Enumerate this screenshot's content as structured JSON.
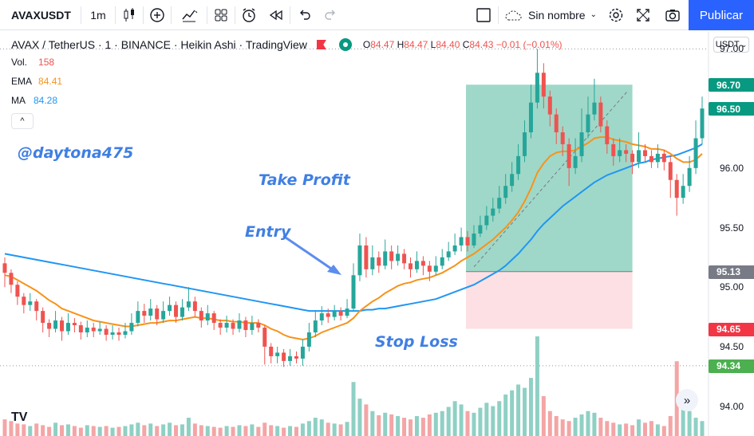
{
  "toolbar": {
    "symbol": "AVAXUSDT",
    "interval": "1m",
    "layout_name": "Sin nombre",
    "publish": "Publicar"
  },
  "legend": {
    "title": "AVAX / TetherUS · 1 · BINANCE · Heikin Ashi · TradingView",
    "ohlc": {
      "o": "84.47",
      "h": "84.47",
      "l": "84.40",
      "c": "84.43",
      "change": "−0.01 (−0.01%)"
    },
    "vol": {
      "label": "Vol.",
      "value": "158"
    },
    "ema": {
      "label": "EMA",
      "value": "84.41"
    },
    "ma": {
      "label": "MA",
      "value": "84.28"
    }
  },
  "currency": "USDT",
  "annotations": {
    "watermark": "@daytona475",
    "take_profit": "Take Profit",
    "entry": "Entry",
    "stop_loss": "Stop Loss"
  },
  "price_tags": [
    {
      "value": "96.70",
      "color": "#089981"
    },
    {
      "value": "96.50",
      "color": "#089981"
    },
    {
      "value": "95.13",
      "color": "#787b86"
    },
    {
      "value": "94.65",
      "color": "#f23645"
    },
    {
      "value": "94.34",
      "color": "#4caf50"
    }
  ],
  "colors": {
    "up": "#26a69a",
    "down": "#ef5350",
    "ema": "#f7931a",
    "ma": "#2196f3",
    "tp_zone": "#7fcbb5",
    "sl_zone": "#fcdde0"
  },
  "chart_data": {
    "type": "candlestick",
    "ylim": [
      93.75,
      97.15
    ],
    "y_ticks": [
      94.0,
      94.5,
      95.0,
      95.5,
      96.0,
      96.5,
      97.0
    ],
    "y_tick_labels": [
      "94.00",
      "94.50",
      "95.00",
      "95.50",
      "96.00",
      "96.50",
      "97.00"
    ],
    "position": {
      "entry": 95.13,
      "take_profit": 96.7,
      "stop_loss": 94.65,
      "start_index": 73,
      "end_index": 99
    },
    "candles": [
      [
        95.2,
        95.12,
        95.25,
        95.0
      ],
      [
        95.12,
        95.02,
        95.15,
        94.95
      ],
      [
        95.02,
        94.92,
        95.05,
        94.85
      ],
      [
        94.92,
        94.85,
        94.95,
        94.78
      ],
      [
        94.85,
        94.88,
        94.95,
        94.8
      ],
      [
        94.88,
        94.8,
        94.9,
        94.72
      ],
      [
        94.8,
        94.7,
        94.83,
        94.62
      ],
      [
        94.7,
        94.65,
        94.73,
        94.58
      ],
      [
        94.65,
        94.72,
        94.8,
        94.62
      ],
      [
        94.72,
        94.63,
        94.75,
        94.55
      ],
      [
        94.63,
        94.7,
        94.78,
        94.6
      ],
      [
        94.7,
        94.68,
        94.74,
        94.62
      ],
      [
        94.68,
        94.62,
        94.71,
        94.56
      ],
      [
        94.62,
        94.66,
        94.72,
        94.58
      ],
      [
        94.66,
        94.63,
        94.7,
        94.58
      ],
      [
        94.63,
        94.65,
        94.71,
        94.6
      ],
      [
        94.65,
        94.6,
        94.68,
        94.55
      ],
      [
        94.6,
        94.62,
        94.68,
        94.56
      ],
      [
        94.62,
        94.6,
        94.66,
        94.55
      ],
      [
        94.6,
        94.63,
        94.7,
        94.57
      ],
      [
        94.63,
        94.7,
        94.78,
        94.6
      ],
      [
        94.7,
        94.8,
        94.88,
        94.67
      ],
      [
        94.8,
        94.76,
        94.86,
        94.7
      ],
      [
        94.76,
        94.82,
        94.9,
        94.72
      ],
      [
        94.82,
        94.73,
        94.85,
        94.68
      ],
      [
        94.73,
        94.8,
        94.88,
        94.7
      ],
      [
        94.8,
        94.85,
        94.92,
        94.76
      ],
      [
        94.85,
        94.75,
        94.88,
        94.7
      ],
      [
        94.75,
        94.83,
        94.9,
        94.72
      ],
      [
        94.83,
        94.88,
        95.0,
        94.8
      ],
      [
        94.88,
        94.8,
        94.92,
        94.75
      ],
      [
        94.8,
        94.72,
        94.83,
        94.66
      ],
      [
        94.72,
        94.78,
        94.85,
        94.68
      ],
      [
        94.78,
        94.7,
        94.8,
        94.64
      ],
      [
        94.7,
        94.66,
        94.73,
        94.6
      ],
      [
        94.66,
        94.7,
        94.76,
        94.62
      ],
      [
        94.7,
        94.65,
        94.73,
        94.6
      ],
      [
        94.65,
        94.72,
        94.78,
        94.62
      ],
      [
        94.72,
        94.64,
        94.75,
        94.58
      ],
      [
        94.64,
        94.7,
        94.76,
        94.6
      ],
      [
        94.7,
        94.66,
        94.73,
        94.62
      ],
      [
        94.66,
        94.5,
        94.68,
        94.35
      ],
      [
        94.5,
        94.42,
        94.53,
        94.36
      ],
      [
        94.42,
        94.45,
        94.5,
        94.36
      ],
      [
        94.45,
        94.38,
        94.48,
        94.33
      ],
      [
        94.38,
        94.42,
        94.48,
        94.34
      ],
      [
        94.42,
        94.4,
        94.46,
        94.36
      ],
      [
        94.4,
        94.5,
        94.56,
        94.34
      ],
      [
        94.5,
        94.62,
        94.7,
        94.46
      ],
      [
        94.62,
        94.72,
        94.8,
        94.58
      ],
      [
        94.72,
        94.78,
        94.84,
        94.68
      ],
      [
        94.78,
        94.75,
        94.82,
        94.7
      ],
      [
        94.75,
        94.8,
        94.85,
        94.72
      ],
      [
        94.8,
        94.76,
        94.83,
        94.72
      ],
      [
        94.76,
        94.82,
        94.9,
        94.74
      ],
      [
        94.82,
        95.1,
        95.2,
        94.8
      ],
      [
        95.1,
        95.35,
        95.45,
        95.05
      ],
      [
        95.35,
        95.15,
        95.42,
        95.08
      ],
      [
        95.15,
        95.25,
        95.35,
        95.1
      ],
      [
        95.25,
        95.18,
        95.3,
        95.12
      ],
      [
        95.18,
        95.3,
        95.4,
        95.15
      ],
      [
        95.3,
        95.22,
        95.35,
        95.15
      ],
      [
        95.22,
        95.28,
        95.35,
        95.18
      ],
      [
        95.28,
        95.2,
        95.32,
        95.15
      ],
      [
        95.2,
        95.15,
        95.25,
        95.08
      ],
      [
        95.15,
        95.22,
        95.3,
        95.12
      ],
      [
        95.22,
        95.18,
        95.26,
        95.1
      ],
      [
        95.18,
        95.13,
        95.22,
        95.05
      ],
      [
        95.13,
        95.18,
        95.26,
        95.1
      ],
      [
        95.18,
        95.25,
        95.32,
        95.15
      ],
      [
        95.25,
        95.3,
        95.38,
        95.22
      ],
      [
        95.3,
        95.35,
        95.45,
        95.27
      ],
      [
        95.35,
        95.42,
        95.5,
        95.3
      ],
      [
        95.42,
        95.35,
        95.47,
        95.3
      ],
      [
        95.35,
        95.45,
        95.52,
        95.33
      ],
      [
        95.45,
        95.52,
        95.6,
        95.42
      ],
      [
        95.52,
        95.6,
        95.68,
        95.48
      ],
      [
        95.6,
        95.66,
        95.75,
        95.55
      ],
      [
        95.66,
        95.75,
        95.85,
        95.62
      ],
      [
        95.75,
        95.85,
        95.95,
        95.7
      ],
      [
        95.85,
        95.95,
        96.05,
        95.8
      ],
      [
        95.95,
        96.1,
        96.2,
        95.9
      ],
      [
        96.1,
        96.3,
        96.4,
        96.05
      ],
      [
        96.3,
        96.55,
        96.7,
        96.25
      ],
      [
        96.55,
        96.8,
        97.0,
        96.5
      ],
      [
        96.8,
        96.6,
        96.88,
        96.5
      ],
      [
        96.6,
        96.45,
        96.65,
        96.35
      ],
      [
        96.45,
        96.3,
        96.5,
        96.2
      ],
      [
        96.3,
        96.2,
        96.35,
        96.1
      ],
      [
        96.2,
        96.0,
        96.25,
        95.85
      ],
      [
        96.0,
        96.1,
        96.25,
        95.95
      ],
      [
        96.1,
        96.3,
        96.5,
        96.05
      ],
      [
        96.3,
        96.45,
        96.6,
        96.25
      ],
      [
        96.45,
        96.55,
        96.75,
        96.4
      ],
      [
        96.55,
        96.35,
        96.6,
        96.3
      ],
      [
        96.35,
        96.2,
        96.4,
        96.12
      ],
      [
        96.2,
        96.1,
        96.25,
        96.02
      ],
      [
        96.1,
        96.15,
        96.25,
        96.05
      ],
      [
        96.15,
        96.12,
        96.2,
        96.05
      ],
      [
        96.12,
        96.05,
        96.15,
        95.95
      ],
      [
        96.05,
        96.15,
        96.3,
        96.0
      ],
      [
        96.15,
        96.1,
        96.2,
        96.05
      ],
      [
        96.1,
        96.05,
        96.15,
        96.0
      ],
      [
        96.05,
        96.12,
        96.2,
        96.0
      ],
      [
        96.12,
        96.05,
        96.15,
        95.98
      ],
      [
        96.05,
        95.9,
        96.1,
        95.75
      ],
      [
        95.9,
        95.75,
        95.95,
        95.6
      ],
      [
        95.75,
        95.85,
        95.95,
        95.7
      ],
      [
        95.85,
        96.0,
        96.1,
        95.8
      ],
      [
        96.0,
        96.25,
        96.4,
        95.95
      ],
      [
        96.25,
        96.5,
        96.6,
        96.2
      ]
    ],
    "volume": [
      20,
      18,
      15,
      14,
      12,
      15,
      13,
      11,
      16,
      13,
      14,
      12,
      10,
      13,
      12,
      11,
      12,
      10,
      11,
      12,
      14,
      16,
      13,
      15,
      12,
      14,
      16,
      13,
      14,
      22,
      15,
      13,
      12,
      11,
      10,
      12,
      11,
      13,
      12,
      14,
      11,
      16,
      13,
      12,
      10,
      12,
      11,
      15,
      18,
      22,
      20,
      16,
      15,
      14,
      17,
      65,
      45,
      38,
      30,
      25,
      28,
      26,
      24,
      22,
      20,
      24,
      22,
      26,
      28,
      30,
      35,
      42,
      38,
      30,
      28,
      34,
      40,
      36,
      42,
      50,
      55,
      62,
      58,
      70,
      120,
      48,
      30,
      24,
      20,
      18,
      22,
      26,
      30,
      28,
      22,
      18,
      16,
      14,
      15,
      13,
      20,
      16,
      18,
      14,
      12,
      24,
      90,
      50,
      30,
      22,
      18
    ],
    "volume_up": [
      false,
      false,
      false,
      false,
      true,
      false,
      false,
      false,
      true,
      false,
      true,
      false,
      false,
      true,
      false,
      true,
      false,
      true,
      false,
      true,
      true,
      true,
      false,
      true,
      false,
      true,
      true,
      false,
      true,
      true,
      false,
      false,
      true,
      false,
      false,
      true,
      false,
      true,
      false,
      true,
      false,
      false,
      false,
      true,
      false,
      true,
      false,
      true,
      true,
      true,
      true,
      false,
      true,
      false,
      true,
      true,
      true,
      false,
      true,
      false,
      true,
      false,
      true,
      false,
      false,
      true,
      false,
      false,
      true,
      true,
      true,
      true,
      true,
      false,
      true,
      true,
      true,
      true,
      true,
      true,
      true,
      true,
      true,
      true,
      true,
      false,
      false,
      false,
      false,
      false,
      true,
      true,
      true,
      true,
      false,
      false,
      false,
      true,
      false,
      false,
      true,
      false,
      false,
      true,
      false,
      false,
      false,
      true,
      true,
      true,
      true
    ],
    "ema": [
      95.1,
      95.09,
      95.06,
      95.03,
      95.0,
      94.97,
      94.93,
      94.89,
      94.86,
      94.82,
      94.8,
      94.78,
      94.76,
      94.74,
      94.72,
      94.71,
      94.7,
      94.69,
      94.68,
      94.67,
      94.67,
      94.68,
      94.69,
      94.7,
      94.7,
      94.71,
      94.72,
      94.72,
      94.73,
      94.74,
      94.75,
      94.74,
      94.74,
      94.73,
      94.72,
      94.72,
      94.71,
      94.71,
      94.7,
      94.7,
      94.7,
      94.68,
      94.65,
      94.63,
      94.6,
      94.58,
      94.57,
      94.56,
      94.57,
      94.59,
      94.62,
      94.64,
      94.66,
      94.68,
      94.7,
      94.74,
      94.8,
      94.84,
      94.88,
      94.91,
      94.95,
      94.98,
      95.01,
      95.03,
      95.04,
      95.06,
      95.07,
      95.08,
      95.1,
      95.12,
      95.15,
      95.18,
      95.22,
      95.25,
      95.28,
      95.32,
      95.36,
      95.4,
      95.45,
      95.5,
      95.56,
      95.63,
      95.72,
      95.83,
      95.96,
      96.04,
      96.1,
      96.13,
      96.14,
      96.14,
      96.15,
      96.18,
      96.21,
      96.25,
      96.26,
      96.26,
      96.24,
      96.23,
      96.22,
      96.2,
      96.19,
      96.18,
      96.16,
      96.16,
      96.15,
      96.12,
      96.08,
      96.05,
      96.05,
      96.07,
      96.12
    ],
    "ma": [
      95.28,
      95.27,
      95.26,
      95.25,
      95.24,
      95.23,
      95.22,
      95.21,
      95.2,
      95.19,
      95.18,
      95.17,
      95.16,
      95.15,
      95.14,
      95.13,
      95.12,
      95.11,
      95.1,
      95.09,
      95.08,
      95.07,
      95.06,
      95.05,
      95.04,
      95.03,
      95.02,
      95.01,
      95.0,
      94.99,
      94.98,
      94.97,
      94.96,
      94.95,
      94.94,
      94.93,
      94.92,
      94.91,
      94.9,
      94.89,
      94.88,
      94.87,
      94.86,
      94.85,
      94.84,
      94.83,
      94.82,
      94.81,
      94.8,
      94.8,
      94.8,
      94.8,
      94.8,
      94.8,
      94.8,
      94.8,
      94.8,
      94.81,
      94.81,
      94.82,
      94.82,
      94.83,
      94.84,
      94.85,
      94.86,
      94.87,
      94.88,
      94.89,
      94.9,
      94.92,
      94.94,
      94.96,
      94.98,
      95.0,
      95.02,
      95.05,
      95.08,
      95.11,
      95.14,
      95.18,
      95.23,
      95.28,
      95.34,
      95.4,
      95.47,
      95.53,
      95.58,
      95.63,
      95.68,
      95.72,
      95.76,
      95.8,
      95.84,
      95.88,
      95.91,
      95.94,
      95.96,
      95.98,
      96.0,
      96.02,
      96.04,
      96.05,
      96.07,
      96.08,
      96.09,
      96.1,
      96.11,
      96.13,
      96.15,
      96.17,
      96.2
    ]
  }
}
